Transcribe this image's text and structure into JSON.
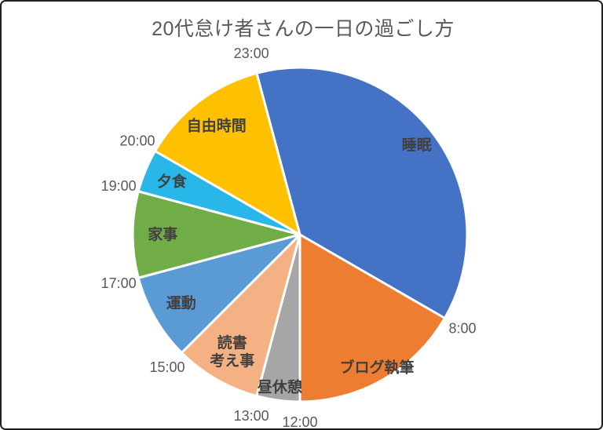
{
  "frame": {
    "background": "#ffffff",
    "border_color": "#1f1f1f"
  },
  "title": "20代怠け者さんの一日の過ごし方",
  "chart_data": {
    "type": "pie",
    "title": "20代怠け者さんの一日の過ごし方",
    "description": "24-hour clock pie chart, 0:00 at top, segments run clockwise",
    "unit": "hours",
    "total_hours": 24,
    "start_angle_deg": 345,
    "direction": "clockwise",
    "legend": "none",
    "segments": [
      {
        "label": "睡眠",
        "start": "23:00",
        "end": "8:00",
        "hours": 9,
        "color": "#4472C4"
      },
      {
        "label": "ブログ執筆",
        "start": "8:00",
        "end": "12:00",
        "hours": 4,
        "color": "#ED7D31"
      },
      {
        "label": "昼休憩",
        "start": "12:00",
        "end": "13:00",
        "hours": 1,
        "color": "#A6A6A6"
      },
      {
        "label": "読書\n考え事",
        "start": "13:00",
        "end": "15:00",
        "hours": 2,
        "color": "#F4B183"
      },
      {
        "label": "運動",
        "start": "15:00",
        "end": "17:00",
        "hours": 2,
        "color": "#5B9BD5"
      },
      {
        "label": "家事",
        "start": "17:00",
        "end": "19:00",
        "hours": 2,
        "color": "#70AD47"
      },
      {
        "label": "夕食",
        "start": "19:00",
        "end": "20:00",
        "hours": 1,
        "color": "#29B6E8"
      },
      {
        "label": "自由時間",
        "start": "20:00",
        "end": "23:00",
        "hours": 3,
        "color": "#FFC000"
      }
    ],
    "boundary_time_labels": [
      "23:00",
      "8:00",
      "12:00",
      "13:00",
      "15:00",
      "17:00",
      "19:00",
      "20:00"
    ],
    "colors": {
      "slice_label_text": "#404040",
      "time_label_text": "#595959",
      "title_text": "#595959",
      "slice_separator": "#ffffff"
    }
  }
}
